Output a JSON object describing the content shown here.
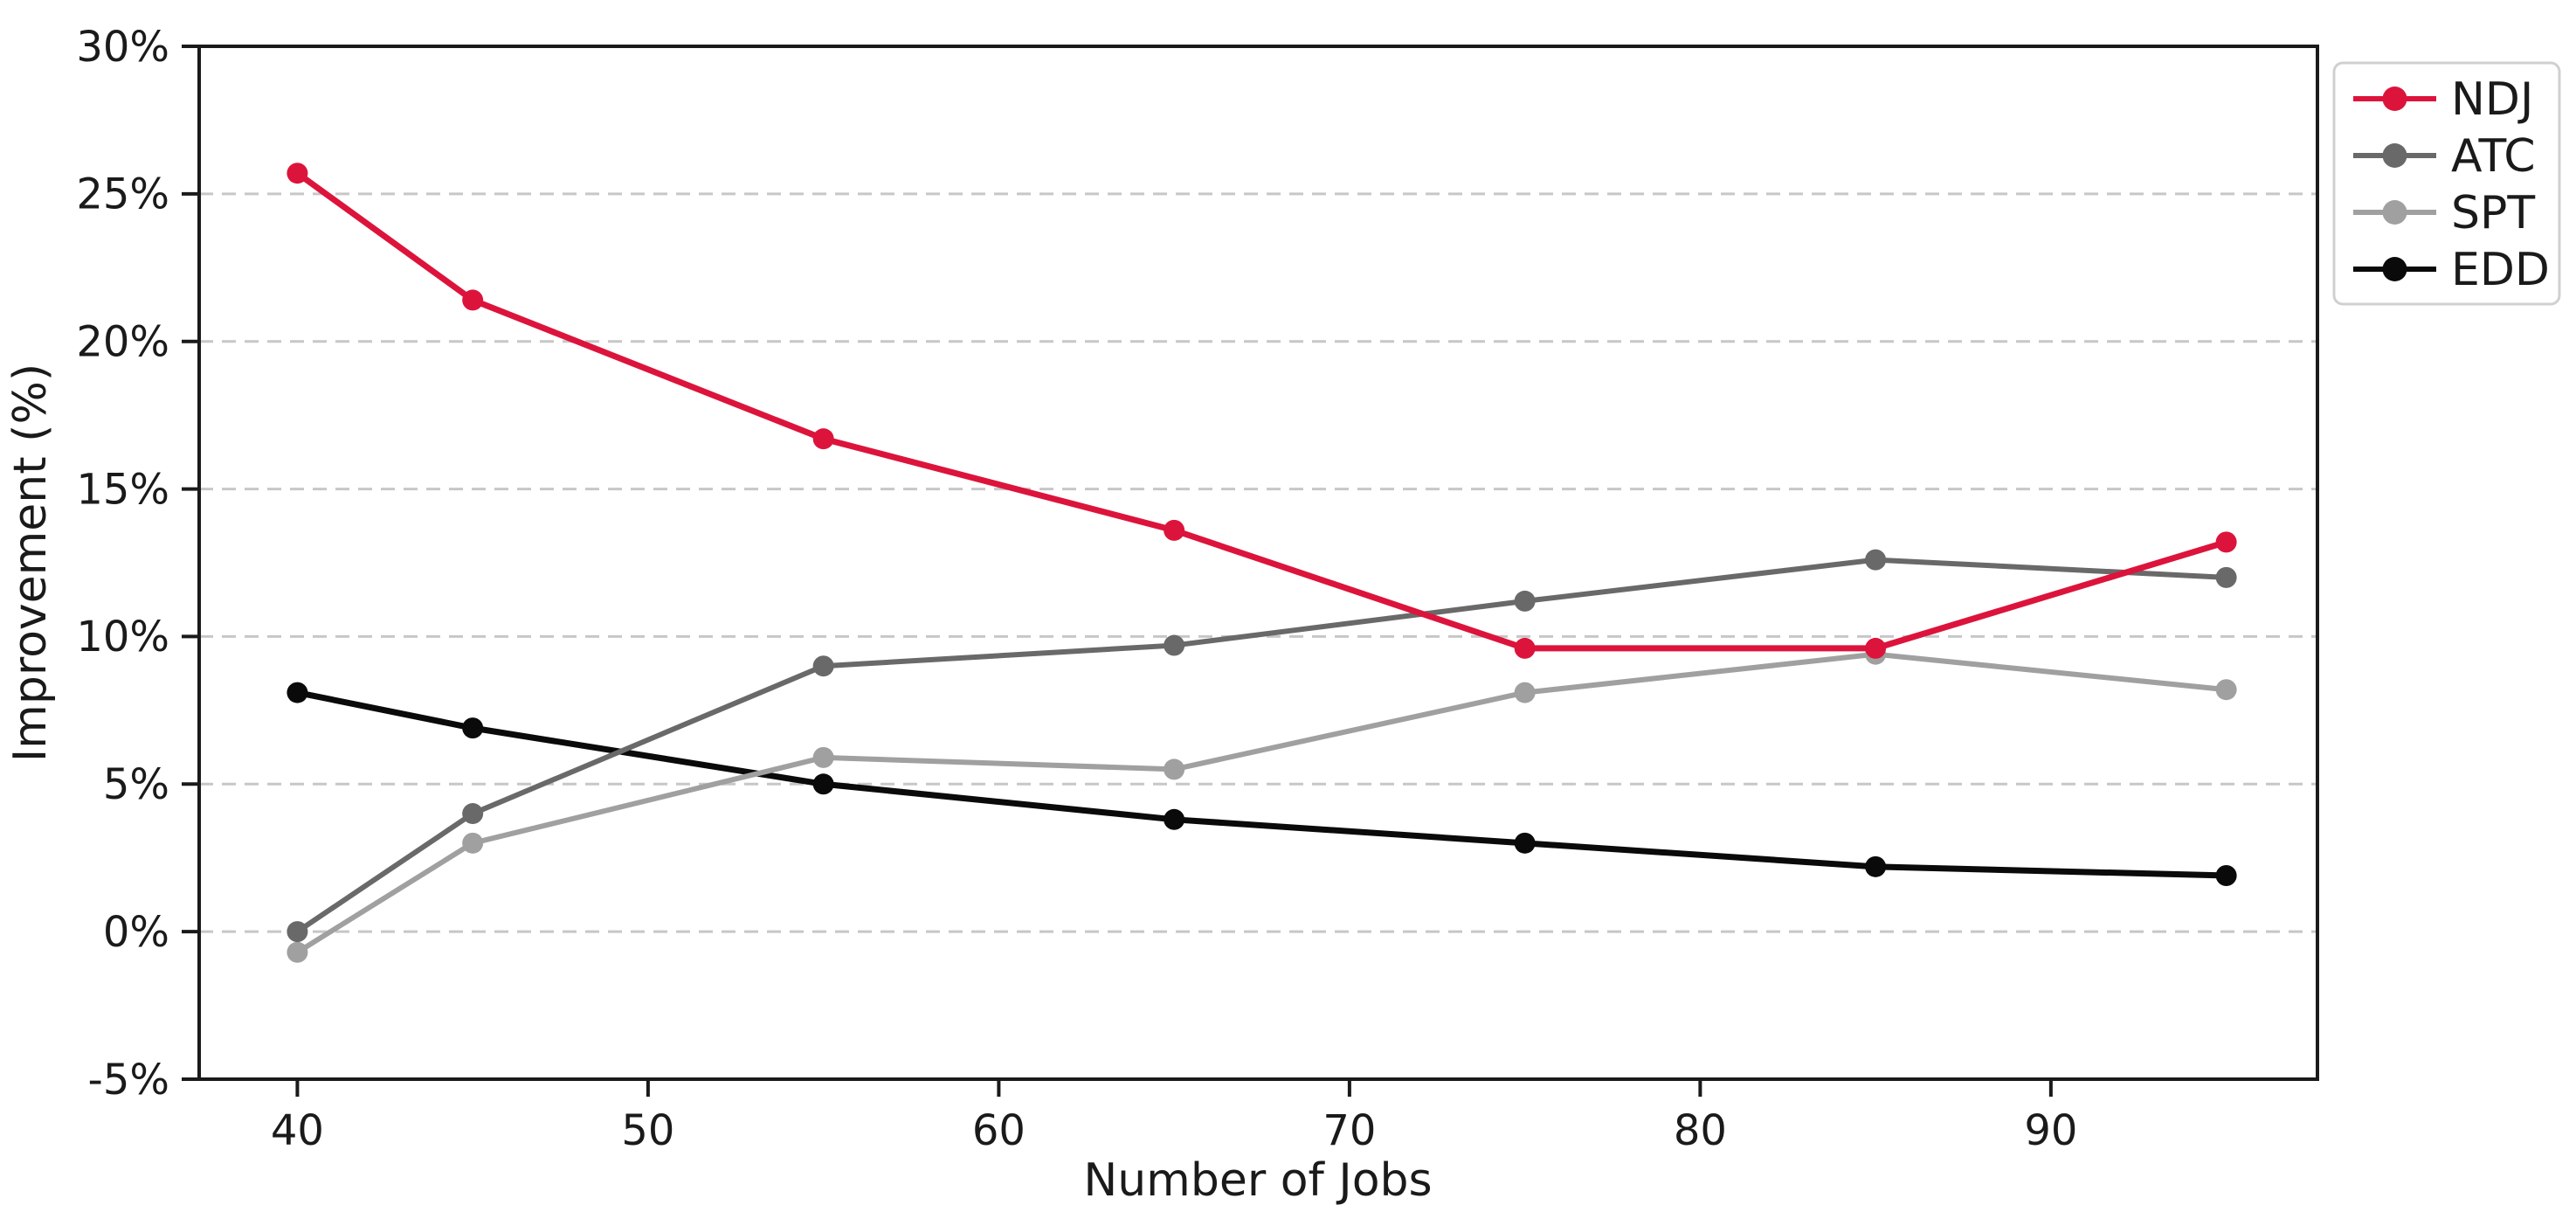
{
  "chart_data": {
    "type": "line",
    "title": "",
    "xlabel": "Number of Jobs",
    "ylabel": "Improvement (%)",
    "x": [
      40,
      45,
      55,
      65,
      75,
      85,
      95
    ],
    "series": [
      {
        "name": "NDJ",
        "color": "#dc143c",
        "marker": "circle",
        "line_style": "solid",
        "values": [
          25.7,
          21.4,
          16.7,
          13.6,
          9.6,
          9.6,
          13.2
        ]
      },
      {
        "name": "ATC",
        "color": "#696969",
        "marker": "circle",
        "line_style": "solid",
        "values": [
          0.0,
          4.0,
          9.0,
          9.7,
          11.2,
          12.6,
          12.0
        ]
      },
      {
        "name": "SPT",
        "color": "#a0a0a0",
        "marker": "circle",
        "line_style": "solid",
        "values": [
          -0.7,
          3.0,
          5.9,
          5.5,
          8.1,
          9.4,
          8.2
        ]
      },
      {
        "name": "EDD",
        "color": "#0a0a0a",
        "marker": "circle",
        "line_style": "solid",
        "values": [
          8.1,
          6.9,
          5.0,
          3.8,
          3.0,
          2.2,
          1.9
        ]
      }
    ],
    "x_ticks": [
      40,
      50,
      60,
      70,
      80,
      90
    ],
    "y_ticks": [
      30,
      25,
      20,
      15,
      10,
      5,
      0,
      -5
    ],
    "y_tick_suffix": "%",
    "xlim": [
      37.2,
      97.6
    ],
    "ylim": [
      -5,
      30
    ],
    "grid": "horizontal-dashed",
    "grid_color": "#c7c7c7",
    "axis_color": "#1a1a1a",
    "legend_position": "top-right-outside",
    "legend_order": [
      "NDJ",
      "ATC",
      "SPT",
      "EDD"
    ]
  }
}
